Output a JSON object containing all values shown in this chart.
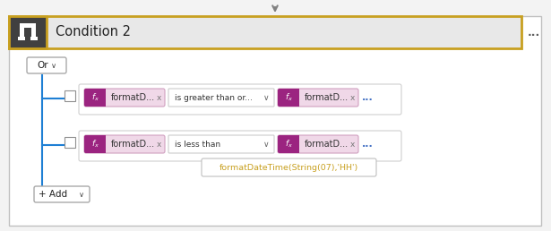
{
  "bg_color": "#f3f3f3",
  "card_bg": "#ffffff",
  "card_border": "#c0c0c0",
  "header_bg": "#e8e8e8",
  "header_border_color": "#c8a020",
  "header_icon_bg": "#404040",
  "header_title": "Condition 2",
  "dots_color": "#4472c4",
  "dots_header_color": "#606060",
  "arrow_color": "#808080",
  "or_btn_color": "#ffffff",
  "or_btn_border": "#aaaaaa",
  "or_label": "Or",
  "line_color": "#1e7fd4",
  "row1_operator": "is greater than or...",
  "row2_operator": "is less than",
  "fx_bg": "#f0d8e8",
  "fx_icon_bg": "#9b2480",
  "fx_label": "formatD...",
  "add_label": "+ Add",
  "tooltip_text": "formatDateTime(String(07),'HH')",
  "tooltip_bg": "#ffffff",
  "tooltip_border": "#c0c0c0",
  "tooltip_text_color": "#c8a020",
  "checkbox_color": "#ffffff",
  "checkbox_border": "#909090"
}
